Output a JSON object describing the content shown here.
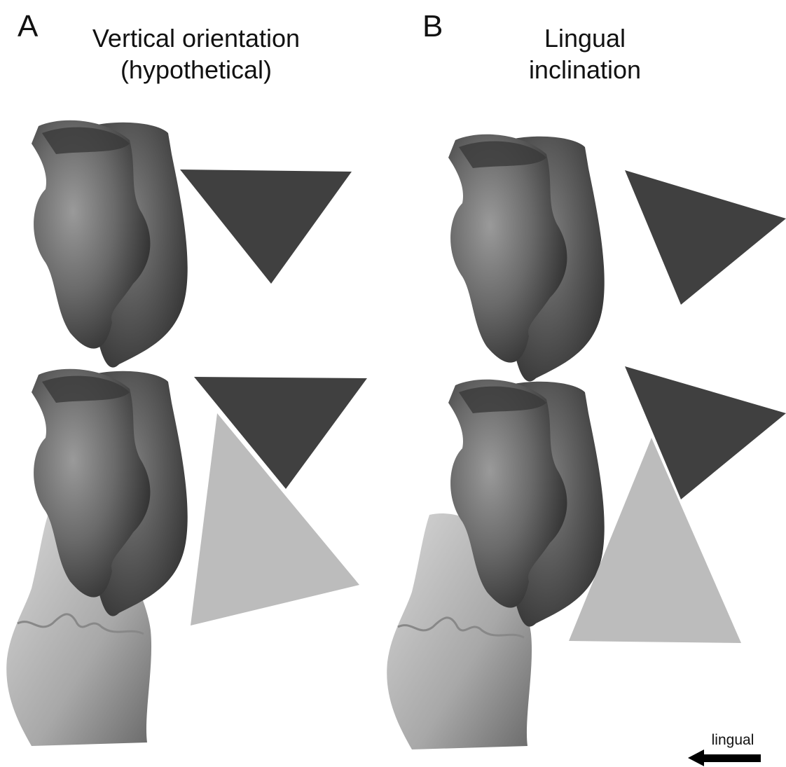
{
  "panels": [
    {
      "label": "A",
      "title_lines": [
        "Vertical orientation",
        "(hypothetical)"
      ]
    },
    {
      "label": "B",
      "title_lines": [
        "Lingual",
        "inclination"
      ]
    }
  ],
  "direction_label": "lingual"
}
